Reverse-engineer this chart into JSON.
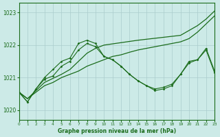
{
  "bg_color": "#cceae7",
  "grid_color": "#aacccc",
  "line_color": "#1a6b1a",
  "xlabel": "Graphe pression niveau de la mer (hPa)",
  "ylim": [
    1019.7,
    1023.3
  ],
  "xlim": [
    0,
    23
  ],
  "yticks": [
    1020,
    1021,
    1022,
    1023
  ],
  "xticks": [
    0,
    1,
    2,
    3,
    4,
    5,
    6,
    7,
    8,
    9,
    10,
    11,
    12,
    13,
    14,
    15,
    16,
    17,
    18,
    19,
    20,
    21,
    22,
    23
  ],
  "line1": {
    "x": [
      0,
      1,
      2,
      3,
      4,
      5,
      6,
      7,
      8,
      9,
      10,
      11,
      12,
      13,
      14,
      15,
      16,
      17,
      18,
      19,
      20,
      21,
      22,
      23
    ],
    "y": [
      1020.55,
      1020.35,
      1020.55,
      1020.75,
      1020.85,
      1021.0,
      1021.1,
      1021.2,
      1021.35,
      1021.45,
      1021.55,
      1021.65,
      1021.7,
      1021.78,
      1021.85,
      1021.9,
      1021.95,
      1022.0,
      1022.05,
      1022.1,
      1022.2,
      1022.4,
      1022.65,
      1022.9
    ]
  },
  "line2": {
    "x": [
      0,
      1,
      2,
      3,
      5,
      6,
      7,
      8,
      9,
      10,
      14,
      19,
      20,
      21,
      22,
      23
    ],
    "y": [
      1020.55,
      1020.35,
      1020.6,
      1020.85,
      1021.1,
      1021.25,
      1021.5,
      1021.75,
      1021.9,
      1022.0,
      1022.15,
      1022.3,
      1022.45,
      1022.6,
      1022.8,
      1023.05
    ]
  },
  "line3": {
    "x": [
      0,
      1,
      2,
      3,
      4,
      5,
      6,
      7,
      8,
      9,
      10,
      11,
      12,
      13,
      14,
      15,
      16,
      17,
      18,
      19,
      20,
      21,
      22,
      23
    ],
    "y": [
      1020.55,
      1020.25,
      1020.65,
      1020.95,
      1021.05,
      1021.35,
      1021.5,
      1021.85,
      1022.05,
      1021.95,
      1021.65,
      1021.55,
      1021.35,
      1021.1,
      1020.9,
      1020.75,
      1020.65,
      1020.7,
      1020.8,
      1021.1,
      1021.5,
      1021.55,
      1021.9,
      1021.2
    ]
  },
  "line4": {
    "x": [
      0,
      1,
      2,
      3,
      4,
      5,
      6,
      7,
      8,
      9,
      10,
      11,
      12,
      13,
      14,
      15,
      16,
      17,
      18,
      19,
      20,
      21,
      22,
      23
    ],
    "y": [
      1020.55,
      1020.25,
      1020.65,
      1021.0,
      1021.25,
      1021.5,
      1021.6,
      1022.05,
      1022.15,
      1022.05,
      1021.65,
      1021.55,
      1021.35,
      1021.1,
      1020.9,
      1020.75,
      1020.6,
      1020.65,
      1020.75,
      1021.1,
      1021.45,
      1021.55,
      1021.85,
      1021.15
    ]
  }
}
